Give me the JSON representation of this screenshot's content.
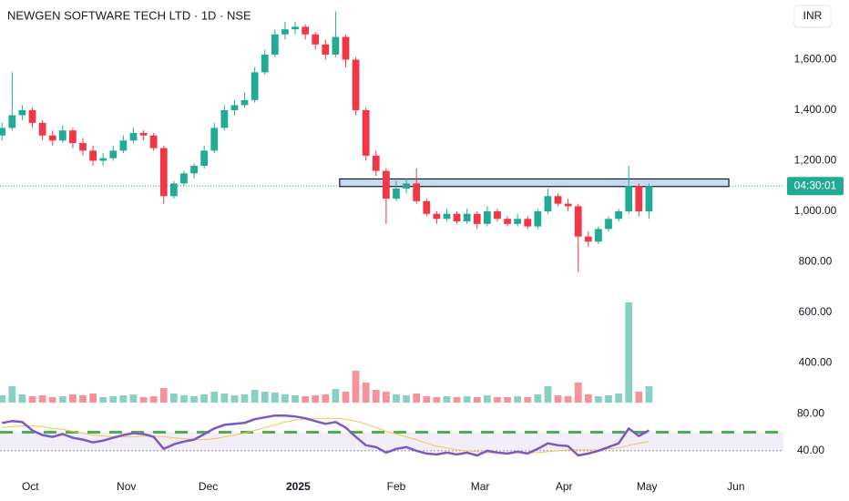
{
  "chart_data": {
    "type": "candlestick",
    "title": "NEWGEN SOFTWARE TECH LTD · 1D · NSE",
    "currency": "INR",
    "countdown": "04:30:01",
    "current_price": 1100,
    "up_color": "#22ab94",
    "down_color": "#f23645",
    "x": [
      0,
      1,
      2,
      3,
      4,
      5,
      6,
      7,
      8,
      9,
      10,
      11,
      12,
      13,
      14,
      15,
      16,
      17,
      18,
      19,
      20,
      21,
      22,
      23,
      24,
      25,
      26,
      27,
      28,
      29,
      30,
      31,
      32,
      33,
      34,
      35,
      36,
      37,
      38,
      39,
      40,
      41,
      42,
      43,
      44,
      45,
      46,
      47,
      48,
      49,
      50,
      51,
      52,
      53,
      54,
      55,
      56,
      57,
      58,
      59,
      60,
      61,
      62,
      63,
      64
    ],
    "open": [
      1300,
      1330,
      1380,
      1400,
      1350,
      1300,
      1280,
      1320,
      1270,
      1240,
      1200,
      1210,
      1240,
      1280,
      1310,
      1300,
      1250,
      1060,
      1110,
      1150,
      1180,
      1240,
      1330,
      1400,
      1420,
      1440,
      1550,
      1620,
      1700,
      1720,
      1730,
      1700,
      1660,
      1620,
      1690,
      1600,
      1400,
      1220,
      1160,
      1050,
      1090,
      1110,
      1040,
      990,
      970,
      990,
      960,
      990,
      950,
      1000,
      970,
      950,
      970,
      940,
      1000,
      1060,
      1030,
      1020,
      900,
      880,
      930,
      970,
      1000,
      1100,
      1000
    ],
    "high": [
      1350,
      1550,
      1420,
      1410,
      1360,
      1320,
      1340,
      1330,
      1290,
      1260,
      1230,
      1260,
      1300,
      1330,
      1320,
      1310,
      1260,
      1120,
      1160,
      1190,
      1260,
      1350,
      1420,
      1440,
      1470,
      1570,
      1640,
      1720,
      1750,
      1750,
      1740,
      1710,
      1680,
      1790,
      1700,
      1610,
      1410,
      1240,
      1170,
      1120,
      1130,
      1170,
      1050,
      1000,
      1010,
      1000,
      1010,
      1000,
      1020,
      1010,
      980,
      990,
      980,
      1010,
      1090,
      1070,
      1050,
      1030,
      920,
      940,
      980,
      1010,
      1180,
      1110,
      1110
    ],
    "low": [
      1280,
      1320,
      1360,
      1330,
      1280,
      1260,
      1270,
      1250,
      1220,
      1180,
      1180,
      1200,
      1230,
      1270,
      1280,
      1240,
      1030,
      1050,
      1100,
      1130,
      1170,
      1230,
      1320,
      1380,
      1410,
      1430,
      1540,
      1610,
      1680,
      1700,
      1680,
      1640,
      1600,
      1610,
      1570,
      1380,
      1200,
      1140,
      950,
      1040,
      1070,
      1030,
      980,
      950,
      960,
      950,
      950,
      930,
      940,
      960,
      940,
      940,
      930,
      930,
      990,
      1020,
      1000,
      760,
      860,
      870,
      920,
      960,
      990,
      980,
      970
    ],
    "close": [
      1330,
      1380,
      1400,
      1350,
      1300,
      1280,
      1320,
      1270,
      1240,
      1200,
      1210,
      1240,
      1280,
      1310,
      1300,
      1250,
      1060,
      1110,
      1150,
      1180,
      1240,
      1330,
      1400,
      1420,
      1440,
      1550,
      1620,
      1700,
      1720,
      1730,
      1700,
      1660,
      1620,
      1690,
      1600,
      1400,
      1220,
      1160,
      1050,
      1090,
      1110,
      1040,
      990,
      970,
      990,
      960,
      990,
      950,
      1000,
      970,
      950,
      970,
      940,
      1000,
      1060,
      1030,
      1020,
      900,
      880,
      930,
      970,
      1000,
      1100,
      1000,
      1100
    ],
    "volume": [
      8,
      18,
      9,
      7,
      8,
      6,
      7,
      9,
      8,
      10,
      6,
      7,
      8,
      9,
      6,
      7,
      16,
      10,
      8,
      7,
      9,
      12,
      10,
      8,
      9,
      14,
      12,
      11,
      9,
      8,
      7,
      8,
      9,
      15,
      12,
      35,
      22,
      14,
      12,
      9,
      8,
      10,
      7,
      6,
      7,
      6,
      7,
      6,
      8,
      6,
      6,
      7,
      6,
      9,
      18,
      8,
      7,
      22,
      9,
      7,
      8,
      10,
      110,
      12,
      18
    ],
    "volume_lim": [
      0,
      120
    ],
    "rsi": [
      70,
      72,
      71,
      62,
      57,
      55,
      58,
      54,
      52,
      49,
      51,
      54,
      57,
      59,
      58,
      55,
      42,
      47,
      50,
      52,
      58,
      64,
      68,
      69,
      70,
      74,
      76,
      78,
      78,
      77,
      75,
      72,
      69,
      71,
      65,
      55,
      46,
      44,
      38,
      42,
      44,
      40,
      37,
      36,
      38,
      36,
      38,
      35,
      40,
      38,
      37,
      39,
      37,
      42,
      48,
      46,
      45,
      35,
      37,
      40,
      44,
      48,
      64,
      56,
      62
    ],
    "rsi_ma": [
      65,
      66,
      67,
      67,
      66,
      64,
      63,
      61,
      59,
      57,
      56,
      55,
      55,
      55,
      56,
      56,
      55,
      54,
      53,
      52,
      52,
      53,
      55,
      57,
      59,
      62,
      65,
      68,
      71,
      73,
      74,
      75,
      75,
      75,
      74,
      72,
      69,
      65,
      61,
      58,
      55,
      52,
      48,
      45,
      43,
      41,
      40,
      39,
      38,
      38,
      38,
      38,
      38,
      38,
      39,
      40,
      41,
      41,
      41,
      41,
      42,
      43,
      46,
      48,
      50
    ],
    "rsi_color": "#7e57c2",
    "rsi_ma_color": "#f7c548",
    "rsi_ylim": [
      33,
      87
    ],
    "rsi_band": [
      40,
      60
    ],
    "rsi_yticks": [
      {
        "value": 80,
        "label": "80.00"
      },
      {
        "value": 40,
        "label": "40.00"
      }
    ],
    "zone": {
      "x": [
        33.4,
        71.9
      ],
      "y": [
        1098,
        1128
      ]
    },
    "xlim": [
      -0.2,
      77.3
    ],
    "xticks": [
      {
        "value": 2.8,
        "label": "Oct"
      },
      {
        "value": 12.3,
        "label": "Nov"
      },
      {
        "value": 20.4,
        "label": "Dec"
      },
      {
        "value": 29.3,
        "label": "2025"
      },
      {
        "value": 39,
        "label": "Feb"
      },
      {
        "value": 47.3,
        "label": "Mar"
      },
      {
        "value": 55.6,
        "label": "Apr"
      },
      {
        "value": 63.8,
        "label": "May"
      },
      {
        "value": 72.6,
        "label": "Jun"
      }
    ],
    "ylim": [
      243,
      1836
    ],
    "yticks": [
      {
        "value": 400,
        "label": "400.00"
      },
      {
        "value": 600,
        "label": "600.00"
      },
      {
        "value": 800,
        "label": "800.00"
      },
      {
        "value": 1000,
        "label": "1,000.00"
      },
      {
        "value": 1200,
        "label": "1,200.00"
      },
      {
        "value": 1400,
        "label": "1,400.00"
      },
      {
        "value": 1600,
        "label": "1,600.00"
      }
    ]
  }
}
